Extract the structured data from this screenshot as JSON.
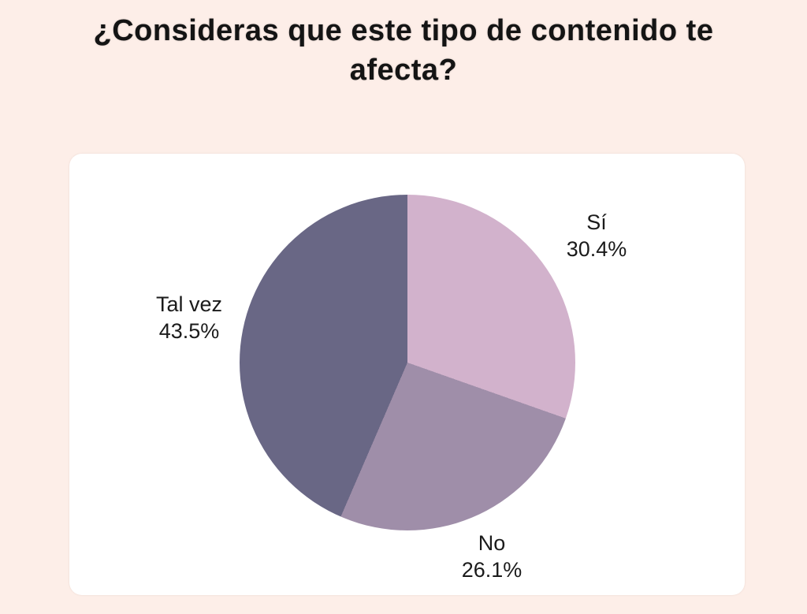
{
  "page": {
    "background_color": "#fdeee8",
    "title": "¿Consideras que este tipo de contenido te afecta?",
    "title_lines": [
      "¿Consideras que este tipo de contenido te",
      "afecta?"
    ]
  },
  "card": {
    "background_color": "#ffffff"
  },
  "chart_data": {
    "type": "pie",
    "title": "¿Consideras que este tipo de contenido te afecta?",
    "start_angle_deg": 0,
    "direction": "clockwise",
    "legend_position": "outside-labels",
    "slices": [
      {
        "label": "Sí",
        "value_pct": 30.4,
        "display": "30.4%",
        "color": "#d2b2cc"
      },
      {
        "label": "No",
        "value_pct": 26.1,
        "display": "26.1%",
        "color": "#9f8ea9"
      },
      {
        "label": "Tal vez",
        "value_pct": 43.5,
        "display": "43.5%",
        "color": "#696785"
      }
    ]
  }
}
